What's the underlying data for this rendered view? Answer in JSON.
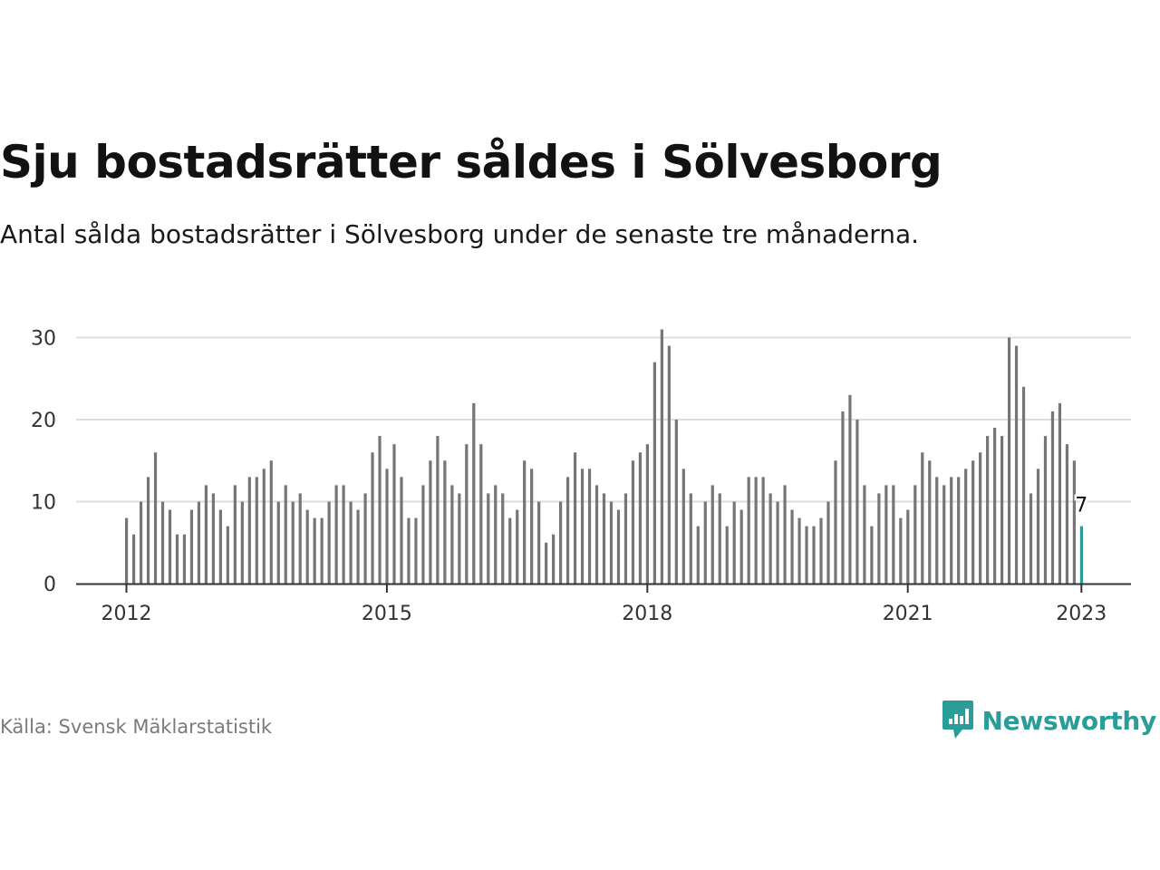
{
  "title": "Sju bostadsrätter såldes i Sölvesborg",
  "subtitle": "Antal sålda bostadsrätter i Sölvesborg under de senaste tre månaderna.",
  "source": "Källa: Svensk Mäklarstatistik",
  "brand": {
    "name": "Newsworthy",
    "logo_icon": "newsworthy-logo-icon",
    "color": "#2a9d98"
  },
  "colors": {
    "bar": "#767676",
    "highlight": "#2a9d98",
    "grid": "#dddddd",
    "axis": "#333333"
  },
  "chart_data": {
    "type": "bar",
    "title": "Sju bostadsrätter såldes i Sölvesborg",
    "subtitle": "Antal sålda bostadsrätter i Sölvesborg under de senaste tre månaderna.",
    "xlabel": "",
    "ylabel": "",
    "ylim": [
      0,
      32
    ],
    "yticks": [
      0,
      10,
      20,
      30
    ],
    "xticks": [
      "2012",
      "2015",
      "2018",
      "2021",
      "2023"
    ],
    "grid": true,
    "start": "2012-01",
    "end": "2023-01",
    "frequency": "monthly",
    "values": [
      8,
      6,
      10,
      13,
      16,
      10,
      9,
      6,
      6,
      9,
      10,
      12,
      11,
      9,
      7,
      12,
      10,
      13,
      13,
      14,
      15,
      10,
      12,
      10,
      11,
      9,
      8,
      8,
      10,
      12,
      12,
      10,
      9,
      11,
      16,
      18,
      14,
      17,
      13,
      8,
      8,
      12,
      15,
      18,
      15,
      12,
      11,
      17,
      22,
      17,
      11,
      12,
      11,
      8,
      9,
      15,
      14,
      10,
      5,
      6,
      10,
      13,
      16,
      14,
      14,
      12,
      11,
      10,
      9,
      11,
      15,
      16,
      17,
      27,
      31,
      29,
      20,
      14,
      11,
      7,
      10,
      12,
      11,
      7,
      10,
      9,
      13,
      13,
      13,
      11,
      10,
      12,
      9,
      8,
      7,
      7,
      8,
      10,
      15,
      21,
      23,
      20,
      12,
      7,
      11,
      12,
      12,
      8,
      9,
      12,
      16,
      15,
      13,
      12,
      13,
      13,
      14,
      15,
      16,
      18,
      19,
      18,
      30,
      29,
      24,
      11,
      14,
      18,
      21,
      22,
      17,
      15,
      7
    ],
    "highlight": {
      "label": "7",
      "value": 7
    }
  }
}
